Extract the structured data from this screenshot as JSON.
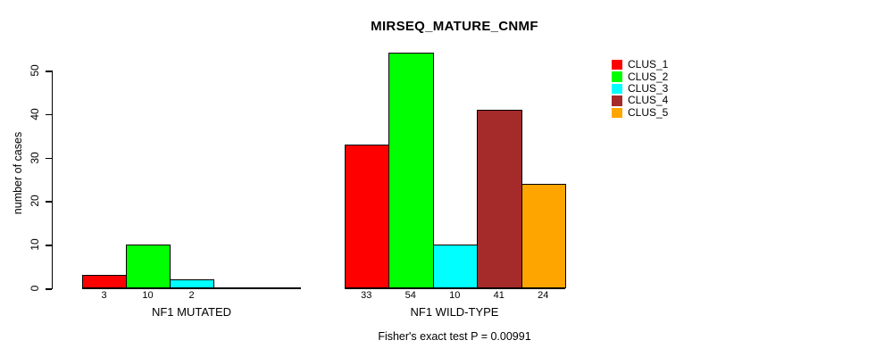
{
  "title": "MIRSEQ_MATURE_CNMF",
  "y_axis": {
    "label": "number of cases",
    "tick_labels": [
      "0",
      "10",
      "20",
      "30",
      "40",
      "50"
    ]
  },
  "footnote": "Fisher's exact test P = 0.00991",
  "legend": {
    "items": [
      {
        "label": "CLUS_1",
        "color": "#FF0000"
      },
      {
        "label": "CLUS_2",
        "color": "#00FF00"
      },
      {
        "label": "CLUS_3",
        "color": "#00FFFF"
      },
      {
        "label": "CLUS_4",
        "color": "#A52A2A"
      },
      {
        "label": "CLUS_5",
        "color": "#FFA500"
      }
    ]
  },
  "chart_data": {
    "type": "bar",
    "title": "MIRSEQ_MATURE_CNMF",
    "ylabel": "number of cases",
    "ylim": [
      0,
      50
    ],
    "yticks": [
      0,
      10,
      20,
      30,
      40,
      50
    ],
    "grid": false,
    "legend_position": "top-right",
    "legend_entries": [
      "CLUS_1",
      "CLUS_2",
      "CLUS_3",
      "CLUS_4",
      "CLUS_5"
    ],
    "colors": [
      "#FF0000",
      "#00FF00",
      "#00FFFF",
      "#A52A2A",
      "#FFA500"
    ],
    "groups": [
      {
        "label": "NF1 MUTATED",
        "categories": [
          "CLUS_1",
          "CLUS_2",
          "CLUS_3",
          "CLUS_4",
          "CLUS_5"
        ],
        "values": [
          3,
          10,
          2,
          0,
          0
        ],
        "bar_value_labels": [
          "3",
          "10",
          "2",
          "",
          ""
        ]
      },
      {
        "label": "NF1 WILD-TYPE",
        "categories": [
          "CLUS_1",
          "CLUS_2",
          "CLUS_3",
          "CLUS_4",
          "CLUS_5"
        ],
        "values": [
          33,
          54,
          10,
          41,
          24
        ],
        "bar_value_labels": [
          "33",
          "54",
          "10",
          "41",
          "24"
        ]
      }
    ],
    "annotation": "Fisher's exact test P = 0.00991"
  }
}
